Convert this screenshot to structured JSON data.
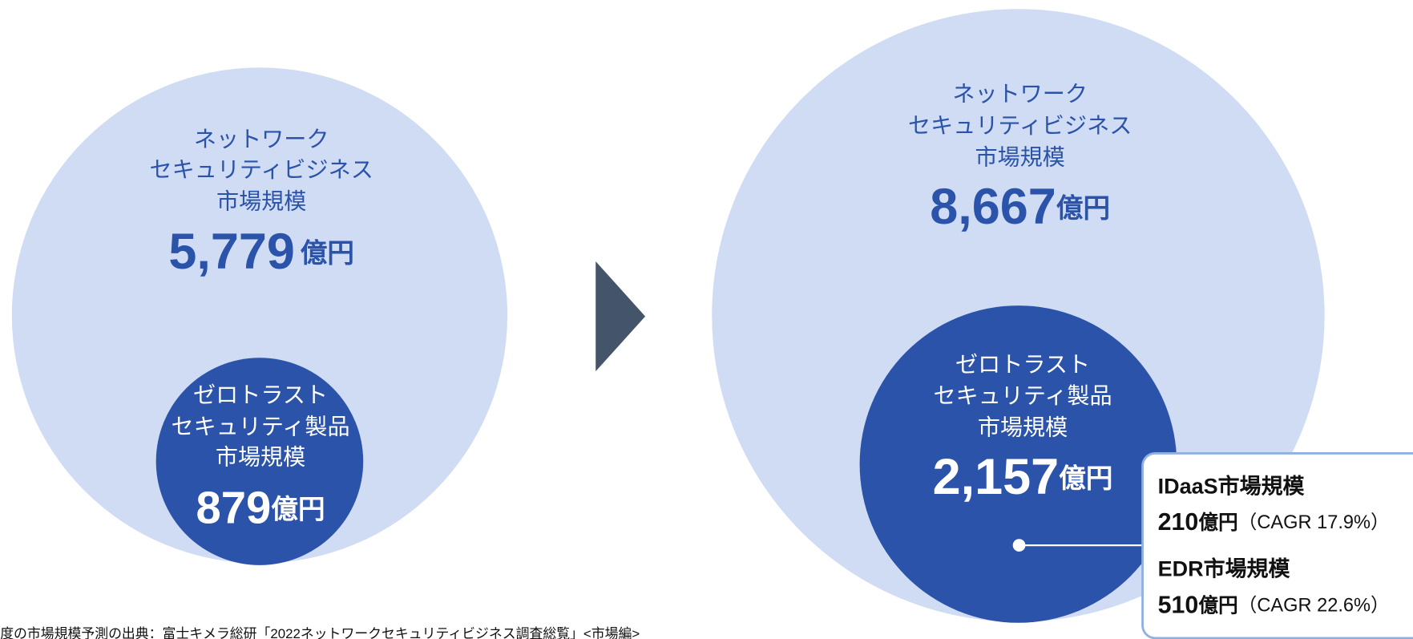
{
  "left": {
    "outer": {
      "lines": [
        "ネットワーク",
        "セキュリティビジネス",
        "市場規模"
      ],
      "value": "5,779",
      "unit": "億円"
    },
    "inner": {
      "lines": [
        "ゼロトラスト",
        "セキュリティ製品",
        "市場規模"
      ],
      "value": "879",
      "unit": "億円"
    }
  },
  "right": {
    "outer": {
      "lines": [
        "ネットワーク",
        "セキュリティビジネス",
        "市場規模"
      ],
      "value": "8,667",
      "unit": "億円"
    },
    "inner": {
      "lines": [
        "ゼロトラスト",
        "セキュリティ製品",
        "市場規模"
      ],
      "value": "2,157",
      "unit": "億円"
    }
  },
  "callout": {
    "items": [
      {
        "title": "IDaaS市場規模",
        "value": "210",
        "unit": "億円",
        "note": "（CAGR 17.9%）"
      },
      {
        "title": "EDR市場規模",
        "value": "510",
        "unit": "億円",
        "note": "（CAGR 22.6%）"
      }
    ]
  },
  "footnote": "度の市場規模予測の出典：富士キメラ総研「2022ネットワークセキュリティビジネス調査総覧」<市場編>"
}
